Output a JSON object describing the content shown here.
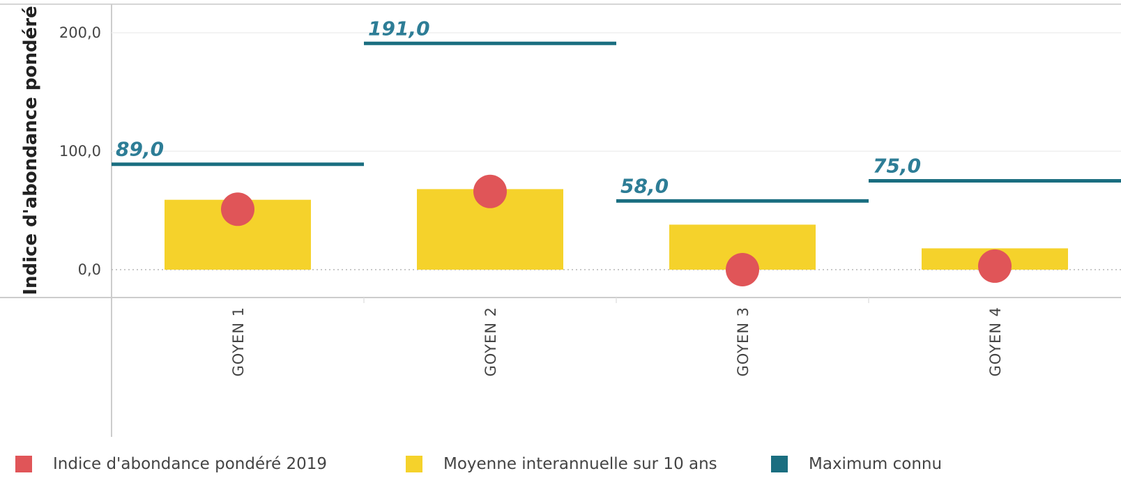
{
  "chart_data": {
    "type": "bar",
    "categories": [
      "GOYEN 1",
      "GOYEN 2",
      "GOYEN 3",
      "GOYEN 4"
    ],
    "ylabel": "Indice d'abondance pondéré",
    "y_ticks": [
      "0,0",
      "100,0",
      "200,0"
    ],
    "y_tick_values": [
      0,
      100,
      200
    ],
    "ylim": [
      -25,
      225
    ],
    "series": [
      {
        "name": "Indice d'abondance pondéré 2019",
        "kind": "point",
        "color": "#e05558",
        "values": [
          51,
          66,
          0,
          3
        ]
      },
      {
        "name": "Moyenne interannuelle sur 10 ans",
        "kind": "bar",
        "color": "#f5d22b",
        "values": [
          59,
          68,
          38,
          18
        ]
      },
      {
        "name": "Maximum connu",
        "kind": "line",
        "color": "#1a6e80",
        "values": [
          89,
          191,
          58,
          75
        ],
        "labels": [
          "89,0",
          "191,0",
          "58,0",
          "75,0"
        ]
      }
    ],
    "max_label_color": "#2d7d96",
    "legend_position": "bottom"
  }
}
